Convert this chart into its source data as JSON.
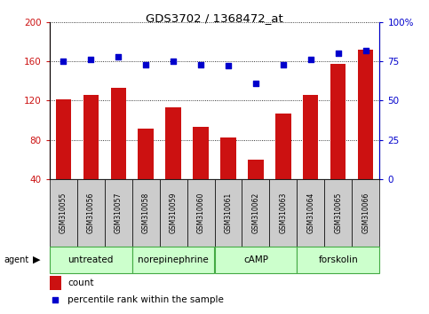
{
  "title": "GDS3702 / 1368472_at",
  "samples": [
    "GSM310055",
    "GSM310056",
    "GSM310057",
    "GSM310058",
    "GSM310059",
    "GSM310060",
    "GSM310061",
    "GSM310062",
    "GSM310063",
    "GSM310064",
    "GSM310065",
    "GSM310066"
  ],
  "counts": [
    121,
    126,
    133,
    91,
    113,
    93,
    82,
    60,
    107,
    126,
    157,
    172
  ],
  "percentiles": [
    75,
    76,
    78,
    73,
    75,
    73,
    72,
    61,
    73,
    76,
    80,
    82
  ],
  "agents": [
    {
      "label": "untreated",
      "start": 0,
      "end": 3
    },
    {
      "label": "norepinephrine",
      "start": 3,
      "end": 6
    },
    {
      "label": "cAMP",
      "start": 6,
      "end": 9
    },
    {
      "label": "forskolin",
      "start": 9,
      "end": 12
    }
  ],
  "ylim_left": [
    40,
    200
  ],
  "ylim_right": [
    0,
    100
  ],
  "yticks_left": [
    40,
    80,
    120,
    160,
    200
  ],
  "yticks_right": [
    0,
    25,
    50,
    75,
    100
  ],
  "bar_color": "#cc1111",
  "dot_color": "#0000cc",
  "agent_color_light": "#ccffcc",
  "agent_color_dark": "#66dd66",
  "agent_border": "#44aa44",
  "sample_bg": "#cccccc",
  "grid_color": "#000000",
  "legend_count_color": "#cc1111",
  "legend_pct_color": "#0000cc",
  "fig_width": 4.83,
  "fig_height": 3.54,
  "dpi": 100
}
